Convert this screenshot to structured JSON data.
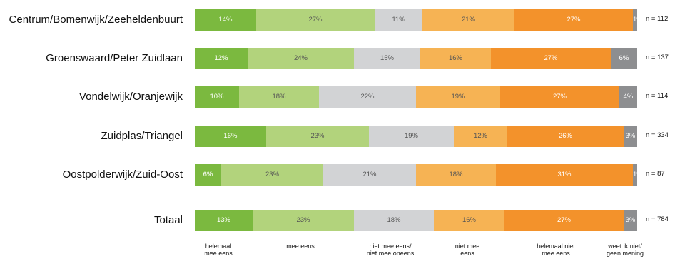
{
  "chart_data": {
    "type": "bar",
    "orientation": "horizontal",
    "stacked": true,
    "percent_of_total": true,
    "categories": [
      "Centrum/Bomenwijk/Zeeheldenbuurt",
      "Groenswaard/Peter Zuidlaan",
      "Vondelwijk/Oranjewijk",
      "Zuidplas/Triangel",
      "Oostpolderwijk/Zuid-Oost",
      "Totaal"
    ],
    "n_labels": [
      "n = 112",
      "n = 137",
      "n = 114",
      "n = 334",
      "n = 87",
      "n = 784"
    ],
    "series": [
      {
        "name": "helemaal\nmee eens",
        "color": "#7bb93f",
        "values": [
          14,
          12,
          10,
          16,
          6,
          13
        ]
      },
      {
        "name": "mee eens",
        "color": "#b2d37c",
        "values": [
          27,
          24,
          18,
          23,
          23,
          23
        ]
      },
      {
        "name": "niet mee eens/\nniet mee oneens",
        "color": "#d2d3d5",
        "values": [
          11,
          15,
          22,
          19,
          21,
          18
        ]
      },
      {
        "name": "niet mee\neens",
        "color": "#f6b354",
        "values": [
          21,
          16,
          19,
          12,
          18,
          16
        ]
      },
      {
        "name": "helemaal  niet\nmee eens",
        "color": "#f3922b",
        "values": [
          27,
          27,
          27,
          26,
          31,
          27
        ]
      },
      {
        "name": "weet ik niet/\ngeen mening",
        "color": "#8d8e90",
        "values": [
          1,
          6,
          4,
          3,
          1,
          3
        ]
      }
    ],
    "xlim": [
      0,
      100
    ],
    "grid": false,
    "legend_position": "bottom"
  }
}
